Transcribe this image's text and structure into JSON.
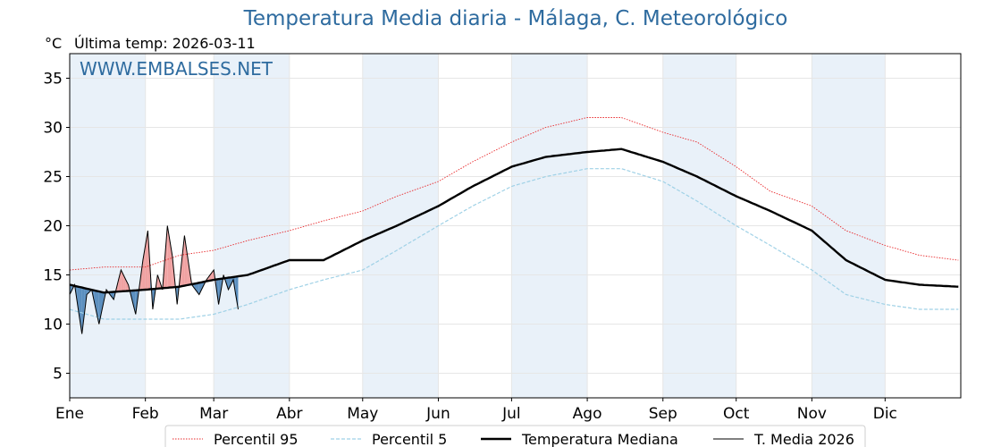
{
  "chart_data": {
    "type": "line",
    "title": "Temperatura Media diaria - Málaga, C. Meteorológico",
    "unit": "°C",
    "subtitle": "Última temp: 2026-03-11",
    "watermark": "WWW.EMBALSES.NET",
    "ylim": [
      2.5,
      37.5
    ],
    "yticks": [
      5,
      10,
      15,
      20,
      25,
      30,
      35
    ],
    "months": [
      "Ene",
      "Feb",
      "Mar",
      "Abr",
      "May",
      "Jun",
      "Jul",
      "Ago",
      "Sep",
      "Oct",
      "Nov",
      "Dic"
    ],
    "shaded_months": [
      "Ene",
      "Mar",
      "May",
      "Jul",
      "Sep",
      "Nov"
    ],
    "grid": true,
    "legend_position": "bottom",
    "colors": {
      "p95": "#e8282b",
      "p5": "#9fd1e6",
      "median": "#000000",
      "current": "#000000",
      "above_fill": "#f0a2a2",
      "below_fill": "#5b8fbf",
      "band": "#e9f1f9",
      "title": "#2e6b9f"
    },
    "series": [
      {
        "name": "Percentil 95",
        "style": "dotted",
        "x": [
          "01-01",
          "01-15",
          "02-01",
          "02-15",
          "03-01",
          "03-15",
          "04-01",
          "04-15",
          "05-01",
          "05-15",
          "06-01",
          "06-15",
          "07-01",
          "07-15",
          "08-01",
          "08-15",
          "09-01",
          "09-15",
          "10-01",
          "10-15",
          "11-01",
          "11-15",
          "12-01",
          "12-15",
          "12-31"
        ],
        "values": [
          15.5,
          15.8,
          15.8,
          17.0,
          17.5,
          18.5,
          19.5,
          20.5,
          21.5,
          23.0,
          24.5,
          26.5,
          28.5,
          30.0,
          31.0,
          31.0,
          29.5,
          28.5,
          26.0,
          23.5,
          22.0,
          19.5,
          18.0,
          17.0,
          16.5
        ]
      },
      {
        "name": "Percentil 5",
        "style": "dashed",
        "x": [
          "01-01",
          "01-15",
          "02-01",
          "02-15",
          "03-01",
          "03-15",
          "04-01",
          "04-15",
          "05-01",
          "05-15",
          "06-01",
          "06-15",
          "07-01",
          "07-15",
          "08-01",
          "08-15",
          "09-01",
          "09-15",
          "10-01",
          "10-15",
          "11-01",
          "11-15",
          "12-01",
          "12-15",
          "12-31"
        ],
        "values": [
          11.5,
          10.5,
          10.5,
          10.5,
          11.0,
          12.0,
          13.5,
          14.5,
          15.5,
          17.5,
          20.0,
          22.0,
          24.0,
          25.0,
          25.8,
          25.8,
          24.5,
          22.5,
          20.0,
          18.0,
          15.5,
          13.0,
          12.0,
          11.5,
          11.5
        ]
      },
      {
        "name": "Temperatura Mediana",
        "style": "solid-thick",
        "x": [
          "01-01",
          "01-15",
          "02-01",
          "02-15",
          "03-01",
          "03-15",
          "04-01",
          "04-15",
          "05-01",
          "05-15",
          "06-01",
          "06-15",
          "07-01",
          "07-15",
          "08-01",
          "08-15",
          "09-01",
          "09-15",
          "10-01",
          "10-15",
          "11-01",
          "11-15",
          "12-01",
          "12-15",
          "12-31"
        ],
        "values": [
          14.0,
          13.2,
          13.5,
          13.8,
          14.5,
          15.0,
          16.5,
          16.5,
          18.5,
          20.0,
          22.0,
          24.0,
          26.0,
          27.0,
          27.5,
          27.8,
          26.5,
          25.0,
          23.0,
          21.5,
          19.5,
          16.5,
          14.5,
          14.0,
          13.8
        ]
      },
      {
        "name": "T. Media 2026",
        "style": "solid-thin",
        "x": [
          "01-01",
          "01-03",
          "01-06",
          "01-08",
          "01-10",
          "01-13",
          "01-16",
          "01-19",
          "01-22",
          "01-25",
          "01-28",
          "01-31",
          "02-02",
          "02-04",
          "02-06",
          "02-08",
          "02-10",
          "02-12",
          "02-14",
          "02-17",
          "02-20",
          "02-23",
          "02-26",
          "03-01",
          "03-03",
          "03-05",
          "03-07",
          "03-09",
          "03-11"
        ],
        "values": [
          13.0,
          14.0,
          9.0,
          13.0,
          13.5,
          10.0,
          13.5,
          12.5,
          15.5,
          14.0,
          11.0,
          16.5,
          19.5,
          11.5,
          15.0,
          13.5,
          20.0,
          17.0,
          12.0,
          19.0,
          14.0,
          13.0,
          14.5,
          15.5,
          12.0,
          15.0,
          13.5,
          14.5,
          11.5
        ]
      }
    ]
  }
}
